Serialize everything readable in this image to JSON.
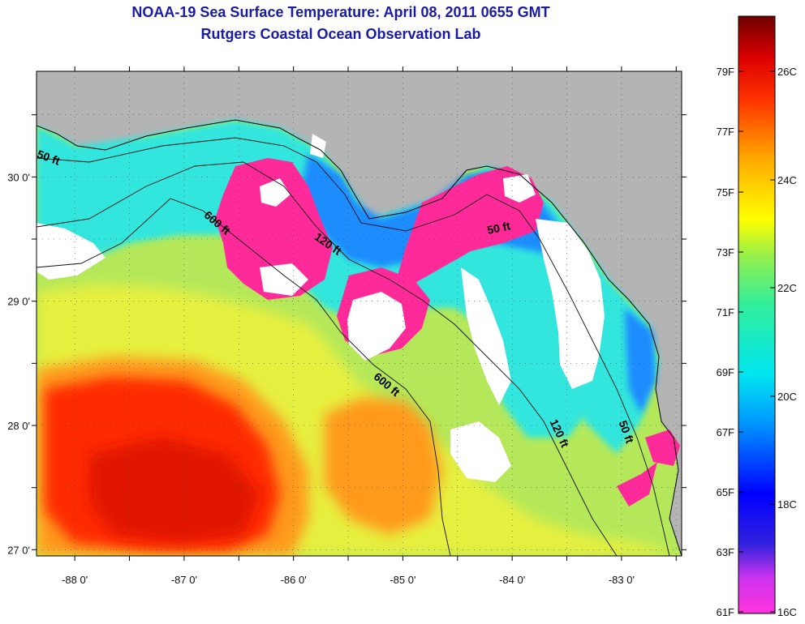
{
  "header": {
    "title": "NOAA-19 Sea Surface Temperature:  April 08, 2011 0655 GMT",
    "subtitle": "Rutgers Coastal Ocean Observation Lab"
  },
  "map": {
    "lon_range": [
      -88.35,
      -82.45
    ],
    "lat_range": [
      26.95,
      30.85
    ],
    "lat_ticks": [
      {
        "value": 30,
        "label": "30 0'"
      },
      {
        "value": 29,
        "label": "29 0'"
      },
      {
        "value": 28,
        "label": "28 0'"
      },
      {
        "value": 27,
        "label": "27 0'"
      }
    ],
    "lon_ticks": [
      {
        "value": -88,
        "label": "-88 0'"
      },
      {
        "value": -87,
        "label": "-87 0'"
      },
      {
        "value": -86,
        "label": "-86 0'"
      },
      {
        "value": -85,
        "label": "-85 0'"
      },
      {
        "value": -84,
        "label": "-84 0'"
      },
      {
        "value": -83,
        "label": "-83 0'"
      }
    ],
    "contour_labels": [
      "50 ft",
      "600 ft",
      "120 ft",
      "50 ft",
      "600 ft",
      "120 ft",
      "50 ft"
    ],
    "land_color": "#b4b4b4"
  },
  "colorbar": {
    "fahrenheit_labels": [
      "79F",
      "77F",
      "75F",
      "73F",
      "71F",
      "69F",
      "67F",
      "65F",
      "63F",
      "61F"
    ],
    "celsius_labels": [
      "26C",
      "24C",
      "22C",
      "20C",
      "18C",
      "16C"
    ],
    "colors": [
      "#7a0000",
      "#ff1a00",
      "#ff9900",
      "#ffff00",
      "#66ff66",
      "#00e6e6",
      "#0066ff",
      "#0000cc",
      "#ff33cc"
    ]
  }
}
